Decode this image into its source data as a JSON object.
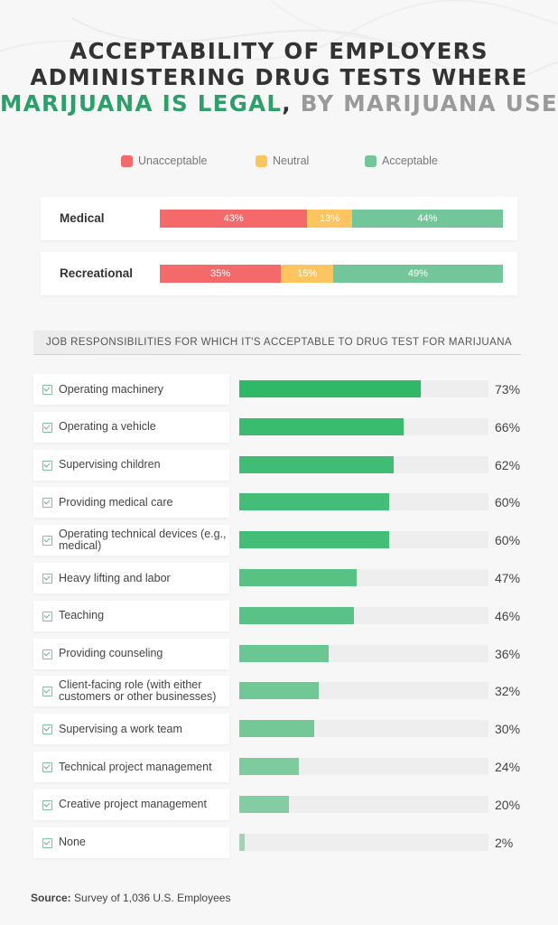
{
  "title": {
    "line1": "ACCEPTABILITY OF EMPLOYERS",
    "line2": "ADMINISTERING DRUG TESTS WHERE",
    "line3_highlight": "MARIJUANA IS LEGAL",
    "line3_sep": ", ",
    "line3_rest": "BY MARIJUANA USE"
  },
  "colors": {
    "unacceptable": "#f46a6a",
    "neutral": "#fcc55f",
    "acceptable": "#72c69a",
    "accent": "#2e9e6a"
  },
  "legend": [
    "Unacceptable",
    "Neutral",
    "Acceptable"
  ],
  "chart_data": [
    {
      "type": "bar",
      "categories": [
        "Medical",
        "Recreational"
      ],
      "series": [
        {
          "name": "Unacceptable",
          "values": [
            43,
            35
          ],
          "labels": [
            "43%",
            "35%"
          ]
        },
        {
          "name": "Neutral",
          "values": [
            13,
            15
          ],
          "labels": [
            "13%",
            "15%"
          ]
        },
        {
          "name": "Acceptable",
          "values": [
            44,
            49
          ],
          "labels": [
            "44%",
            "49%"
          ]
        }
      ],
      "stacked": true
    },
    {
      "type": "bar",
      "title": "JOB RESPONSIBILITIES FOR WHICH IT'S ACCEPTABLE TO DRUG TEST FOR MARIJUANA",
      "categories": [
        "Operating machinery",
        "Operating a vehicle",
        "Supervising children",
        "Providing medical care",
        "Operating technical devices (e.g., medical)",
        "Heavy lifting and labor",
        "Teaching",
        "Providing counseling",
        "Client-facing role (with either customers or other businesses)",
        "Supervising a work team",
        "Technical project management",
        "Creative project management",
        "None"
      ],
      "values": [
        73,
        66,
        62,
        60,
        60,
        47,
        46,
        36,
        32,
        30,
        24,
        20,
        2
      ],
      "labels": [
        "73%",
        "66%",
        "62%",
        "60%",
        "60%",
        "47%",
        "46%",
        "36%",
        "32%",
        "30%",
        "24%",
        "20%",
        "2%"
      ],
      "ylim": [
        0,
        100
      ]
    }
  ],
  "source": {
    "label": "Source:",
    "text": "Survey of 1,036 U.S. Employees"
  }
}
